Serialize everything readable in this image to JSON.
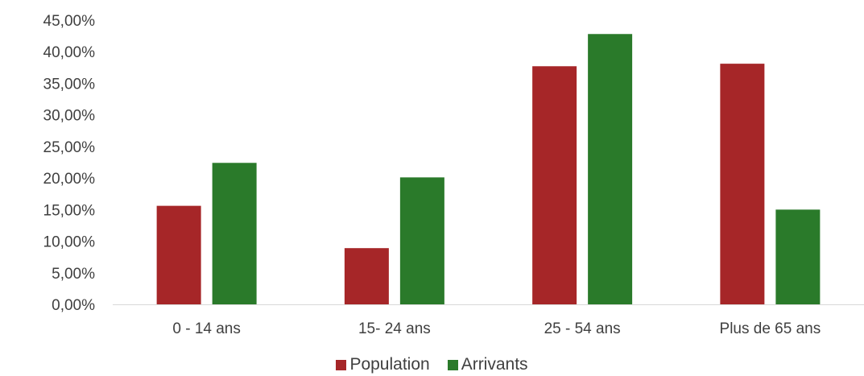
{
  "chart_data": {
    "type": "bar",
    "categories": [
      "0 - 14 ans",
      "15- 24 ans",
      "25 - 54 ans",
      "Plus de 65 ans"
    ],
    "series": [
      {
        "name": "Population",
        "color": "#a62628",
        "values": [
          15.6,
          8.9,
          37.7,
          38.1
        ]
      },
      {
        "name": "Arrivants",
        "color": "#2a7a2a",
        "values": [
          22.4,
          20.1,
          42.8,
          15.0
        ]
      }
    ],
    "y_ticks": [
      "0,00%",
      "5,00%",
      "10,00%",
      "15,00%",
      "20,00%",
      "25,00%",
      "30,00%",
      "35,00%",
      "40,00%",
      "45,00%"
    ],
    "ylim": [
      0,
      45
    ],
    "grid": false,
    "legend_position": "bottom",
    "title": "",
    "xlabel": "",
    "ylabel": ""
  }
}
